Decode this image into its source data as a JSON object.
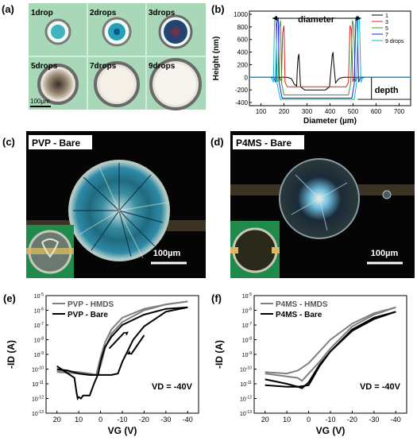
{
  "panels": {
    "a": {
      "label": "(a)",
      "drops": [
        "1drop",
        "2drops",
        "3drops",
        "5drops",
        "7drops",
        "9drops"
      ],
      "scale_bar": "100µm"
    },
    "b": {
      "label": "(b)"
    },
    "c": {
      "label": "(c)",
      "title": "PVP - Bare",
      "scale_bar": "100µm"
    },
    "d": {
      "label": "(d)",
      "title": "P4MS - Bare",
      "scale_bar": "100µm"
    },
    "e": {
      "label": "(e)"
    },
    "f": {
      "label": "(f)"
    }
  },
  "chart_data": [
    {
      "id": "b",
      "type": "line",
      "xlabel": "Diameter (µm)",
      "ylabel": "Height (nm)",
      "xlim": [
        50,
        750
      ],
      "ylim": [
        -450,
        1050
      ],
      "xticks": [
        "100",
        "200",
        "300",
        "400",
        "500",
        "600",
        "700"
      ],
      "yticks": [
        "-400",
        "-200",
        "0",
        "200",
        "400",
        "600",
        "800",
        "1000"
      ],
      "annotations": {
        "diameter": "diameter",
        "depth": "depth"
      },
      "series": [
        {
          "name": "1",
          "color": "#000000",
          "x": [
            50,
            215,
            232,
            238,
            245,
            255,
            258,
            261,
            265,
            272,
            290,
            380,
            398,
            405,
            410,
            413,
            416,
            424,
            430,
            436,
            445,
            460,
            750
          ],
          "y": [
            0,
            0,
            -20,
            -60,
            -110,
            -140,
            120,
            300,
            370,
            -150,
            -200,
            -200,
            -150,
            150,
            350,
            400,
            230,
            -90,
            -60,
            -30,
            -10,
            0,
            0
          ]
        },
        {
          "name": "3",
          "color": "#ee1c1c",
          "x": [
            50,
            175,
            183,
            189,
            194,
            200,
            205,
            215,
            470,
            480,
            487,
            493,
            499,
            505,
            515,
            750
          ],
          "y": [
            0,
            0,
            -20,
            -60,
            700,
            820,
            -80,
            -150,
            -150,
            -80,
            820,
            750,
            -60,
            -20,
            0,
            0
          ]
        },
        {
          "name": "5",
          "color": "#2ba02b",
          "x": [
            50,
            160,
            168,
            174,
            179,
            185,
            190,
            200,
            480,
            490,
            497,
            503,
            509,
            515,
            525,
            750
          ],
          "y": [
            0,
            0,
            -20,
            -70,
            780,
            900,
            -100,
            -280,
            -280,
            -100,
            900,
            820,
            -70,
            -20,
            0,
            0
          ]
        },
        {
          "name": "7",
          "color": "#1c1cee",
          "x": [
            50,
            150,
            158,
            164,
            169,
            175,
            180,
            192,
            495,
            505,
            512,
            518,
            524,
            530,
            540,
            750
          ],
          "y": [
            0,
            0,
            -20,
            -80,
            850,
            950,
            -100,
            -330,
            -330,
            -100,
            950,
            880,
            -80,
            -20,
            0,
            0
          ]
        },
        {
          "name": "9 drops",
          "color": "#00bcd4",
          "x": [
            50,
            140,
            148,
            154,
            159,
            165,
            170,
            185,
            505,
            515,
            522,
            528,
            534,
            540,
            550,
            750
          ],
          "y": [
            0,
            0,
            -20,
            -80,
            880,
            980,
            -100,
            -350,
            -350,
            -100,
            980,
            900,
            -80,
            -20,
            0,
            0
          ]
        }
      ]
    },
    {
      "id": "e",
      "type": "line",
      "xlabel": "VG (V)",
      "ylabel": "-ID (A)",
      "xlim": [
        25,
        -45
      ],
      "ylim_log": [
        -13,
        -5
      ],
      "xticks": [
        "20",
        "10",
        "0",
        "-10",
        "-20",
        "-30",
        "-40"
      ],
      "yticks_exp": [
        "-13",
        "-12",
        "-11",
        "-10",
        "-9",
        "-8",
        "-7",
        "-6",
        "-5"
      ],
      "annotation": "VD = -40V",
      "series": [
        {
          "name": "PVP - HMDS",
          "color": "#808080",
          "x": [
            20,
            10,
            5,
            2,
            0,
            -2,
            -5,
            -10,
            -20,
            -30,
            -40
          ],
          "y": [
            -10.1,
            -10.2,
            -10.3,
            -10.4,
            -9.2,
            -8.2,
            -7.3,
            -6.5,
            -5.9,
            -5.6,
            -5.4
          ]
        },
        {
          "name": "PVP - HMDS",
          "color": "#808080",
          "x": [
            -40,
            -30,
            -20,
            -10,
            -5,
            -2,
            0,
            2,
            5,
            10,
            20
          ],
          "y": [
            -5.4,
            -5.6,
            -6.0,
            -6.8,
            -7.6,
            -8.6,
            -9.8,
            -10.4,
            -10.4,
            -10.3,
            -10.2
          ]
        },
        {
          "name": "PVP - Bare",
          "color": "#000000",
          "x": [
            20,
            12,
            11,
            10.5,
            10,
            9,
            8,
            5,
            3,
            1,
            0,
            -2,
            -5,
            -10,
            -20,
            -30,
            -40
          ],
          "y": [
            -9.8,
            -10.6,
            -11.6,
            -12.0,
            -11.9,
            -12.0,
            -11.8,
            -11.8,
            -11.0,
            -10.3,
            -9.5,
            -8.5,
            -7.8,
            -7.0,
            -6.3,
            -5.9,
            -5.8
          ]
        },
        {
          "name": "PVP - Bare",
          "color": "#000000",
          "x": [
            -40,
            -30,
            -20,
            -15,
            -10,
            -8,
            -5,
            0,
            5,
            10,
            15,
            20
          ],
          "y": [
            -5.8,
            -6.1,
            -7.1,
            -8.0,
            -9.5,
            -10.3,
            -10.4,
            -10.4,
            -10.4,
            -10.3,
            -10.1,
            -10.0
          ]
        }
      ],
      "legend": [
        "PVP - HMDS",
        "PVP - Bare"
      ]
    },
    {
      "id": "f",
      "type": "line",
      "xlabel": "VG (V)",
      "ylabel": "-ID (A)",
      "xlim": [
        25,
        -45
      ],
      "ylim_log": [
        -13,
        -5
      ],
      "xticks": [
        "20",
        "10",
        "0",
        "-10",
        "-20",
        "-30",
        "-40"
      ],
      "yticks_exp": [
        "-13",
        "-12",
        "-11",
        "-10",
        "-9",
        "-8",
        "-7",
        "-6",
        "-5"
      ],
      "annotation": "VD = -40V",
      "series": [
        {
          "name": "P4MS - HMDS",
          "color": "#808080",
          "x": [
            20,
            10,
            5,
            3,
            0,
            -5,
            -10,
            -20,
            -30,
            -40
          ],
          "y": [
            -10.3,
            -10.5,
            -10.6,
            -10.8,
            -10.3,
            -9.5,
            -8.6,
            -7.1,
            -6.3,
            -5.8
          ]
        },
        {
          "name": "P4MS - HMDS",
          "color": "#808080",
          "x": [
            -40,
            -30,
            -20,
            -10,
            -5,
            0,
            5,
            10,
            20
          ],
          "y": [
            -5.8,
            -6.2,
            -6.9,
            -8.0,
            -8.8,
            -9.6,
            -10.1,
            -10.3,
            -10.2
          ]
        },
        {
          "name": "P4MS - Bare",
          "color": "#000000",
          "x": [
            20,
            10,
            5,
            3,
            0,
            -5,
            -10,
            -20,
            -30,
            -40
          ],
          "y": [
            -10.7,
            -11.0,
            -11.2,
            -11.3,
            -10.9,
            -9.7,
            -8.8,
            -7.3,
            -6.5,
            -6.1
          ]
        },
        {
          "name": "P4MS - Bare",
          "color": "#000000",
          "x": [
            -40,
            -30,
            -20,
            -10,
            -5,
            0,
            5,
            10,
            20
          ],
          "y": [
            -6.1,
            -6.6,
            -7.4,
            -8.8,
            -9.8,
            -11.1,
            -11.2,
            -11.2,
            -11.1
          ]
        }
      ],
      "legend": [
        "P4MS - HMDS",
        "P4MS - Bare"
      ]
    }
  ]
}
